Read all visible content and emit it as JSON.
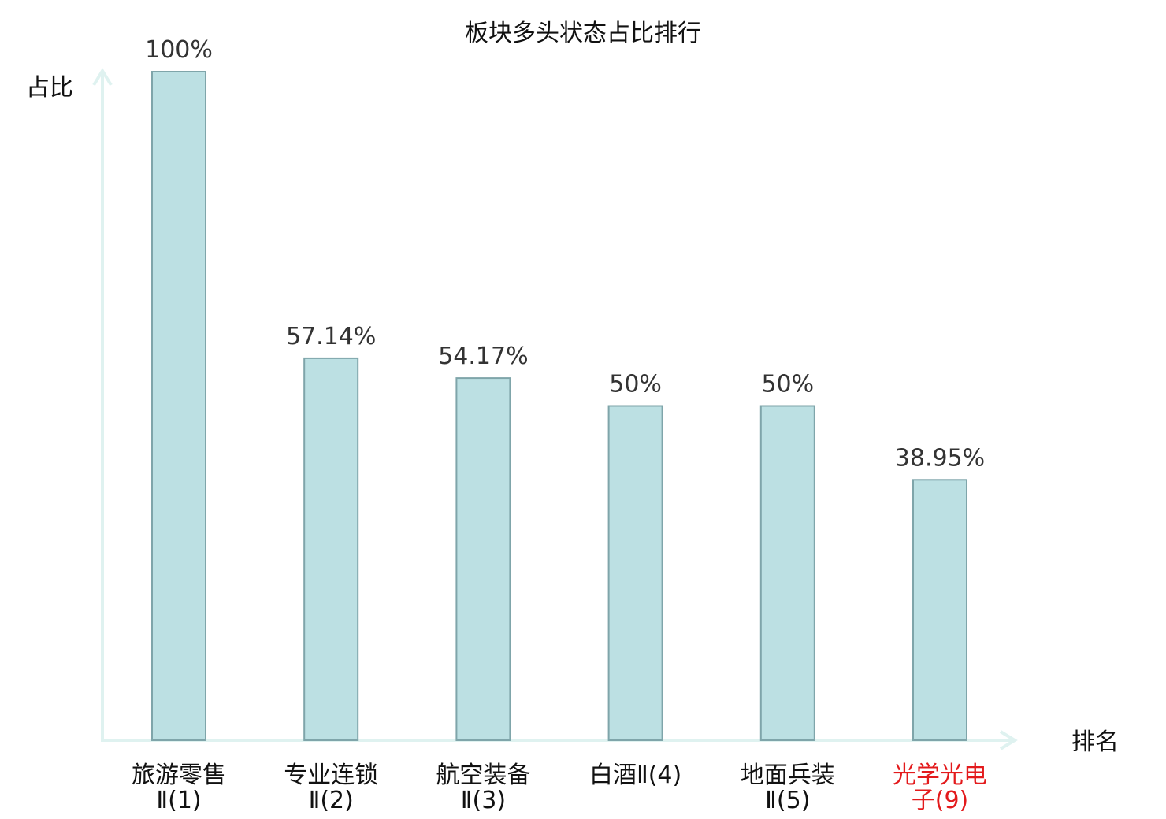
{
  "chart_data": {
    "type": "bar",
    "title": "板块多头状态占比排行",
    "xlabel": "排名",
    "ylabel": "占比",
    "ylim": [
      0,
      100
    ],
    "categories": [
      {
        "lines": [
          "旅游零售",
          "Ⅱ(1)"
        ],
        "highlight": false
      },
      {
        "lines": [
          "专业连锁",
          "Ⅱ(2)"
        ],
        "highlight": false
      },
      {
        "lines": [
          "航空装备",
          "Ⅱ(3)"
        ],
        "highlight": false
      },
      {
        "lines": [
          "白酒Ⅱ(4)"
        ],
        "highlight": false
      },
      {
        "lines": [
          "地面兵装",
          "Ⅱ(5)"
        ],
        "highlight": false
      },
      {
        "lines": [
          "光学光电",
          "子(9)"
        ],
        "highlight": true
      }
    ],
    "values": [
      100,
      57.14,
      54.17,
      50,
      50,
      38.95
    ],
    "value_labels": [
      "100%",
      "57.14%",
      "54.17%",
      "50%",
      "50%",
      "38.95%"
    ],
    "grid": false,
    "colors": {
      "bar_fill": "#bce0e3",
      "bar_stroke": "#7fa5aa",
      "axis": "#dff2f0",
      "highlight_text": "#e31a1c",
      "normal_text": "#111111",
      "value_text": "#333333"
    }
  }
}
